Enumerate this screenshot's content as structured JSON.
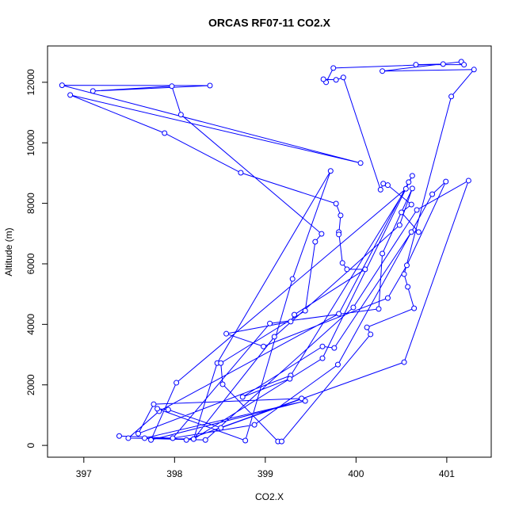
{
  "chart_data": {
    "type": "line",
    "title": "ORCAS RF07-11 CO2.X",
    "x_label": "CO2.X",
    "y_label": "Altitude (m)",
    "color": "#0000ff",
    "markers": true,
    "x": [
      397.39,
      397.98,
      398.13,
      399.4,
      397.77,
      397.6,
      399.28,
      400.55,
      398.02,
      397.74,
      399.44,
      397.67,
      398.21,
      399.63,
      400.62,
      400.58,
      399.81,
      397.83,
      397.49,
      398.34,
      399.97,
      400.67,
      401.24,
      400.53,
      398.51,
      397.93,
      397.81,
      398.78,
      399.3,
      399.72,
      398.47,
      398.21,
      399.1,
      400.48,
      400.62,
      400.29,
      400.25,
      399.05,
      397.98,
      398.88,
      399.8,
      400.84,
      400.99,
      400.56,
      400.35,
      398.98,
      398.57,
      399.28,
      399.32,
      400.1,
      399.9,
      399.85,
      399.81,
      399.81,
      399.83,
      399.78,
      398.73,
      397.89,
      396.85,
      400.05,
      396.76,
      398.39,
      397.1,
      397.97,
      398.07,
      399.62,
      399.55,
      399.44,
      398.51,
      398.53,
      399.14,
      399.18,
      400.16,
      400.12,
      400.64,
      400.57,
      400.53,
      401.05,
      401.3,
      400.29,
      401.16,
      401.19,
      400.66,
      400.96,
      399.75,
      399.67,
      399.64,
      399.78,
      399.86,
      400.27,
      400.3,
      400.35,
      400.61,
      400.5,
      400.69,
      400.61,
      399.76,
      399.63,
      398.75,
      399.27
    ],
    "values": [
      310,
      240,
      180,
      1550,
      1360,
      390,
      2310,
      8480,
      2070,
      180,
      1470,
      240,
      210,
      2880,
      8910,
      8700,
      4350,
      1130,
      240,
      180,
      4560,
      7780,
      8750,
      2750,
      580,
      1180,
      1210,
      160,
      5500,
      9070,
      2720,
      210,
      3590,
      7280,
      8490,
      6340,
      4510,
      4030,
      240,
      680,
      2670,
      8300,
      8720,
      5950,
      4870,
      3270,
      3690,
      4090,
      4320,
      5820,
      5820,
      6030,
      7050,
      6970,
      7600,
      7990,
      9010,
      10320,
      11580,
      9330,
      11900,
      11890,
      11710,
      11870,
      10930,
      6990,
      6730,
      4450,
      2720,
      2020,
      130,
      130,
      3670,
      3900,
      4530,
      5240,
      5660,
      11530,
      12420,
      12370,
      12680,
      12580,
      12580,
      12600,
      12470,
      12000,
      12100,
      12080,
      12160,
      8450,
      8650,
      8600,
      7960,
      7700,
      7050,
      7050,
      3220,
      3270,
      1600,
      2200
    ],
    "xlim": [
      396.6,
      401.49
    ],
    "ylim": [
      -390,
      13200
    ],
    "xticks": [
      397,
      398,
      399,
      400,
      401
    ],
    "yticks": [
      0,
      2000,
      4000,
      6000,
      8000,
      10000,
      12000
    ]
  }
}
